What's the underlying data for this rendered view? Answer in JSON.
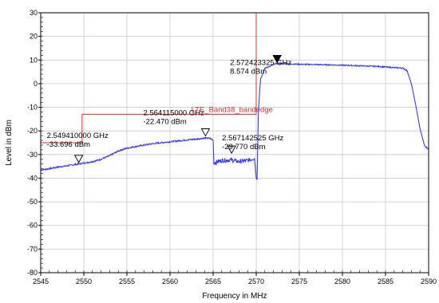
{
  "chart_data": {
    "type": "line",
    "title": "",
    "xlabel": "Frequency in MHz",
    "ylabel": "Level in dBm",
    "xlim": [
      2545,
      2590
    ],
    "ylim": [
      -80,
      30
    ],
    "x_ticks": [
      2545,
      2550,
      2555,
      2560,
      2565,
      2570,
      2575,
      2580,
      2585,
      2590
    ],
    "y_ticks": [
      30,
      20,
      10,
      0,
      -10,
      -20,
      -30,
      -40,
      -50,
      -60,
      -70,
      -80
    ],
    "x_tick_labels": [
      "2545",
      "2550",
      "2555",
      "2560",
      "2565",
      "2570",
      "2575",
      "2580",
      "2585",
      "2590"
    ],
    "y_tick_labels": [
      "30",
      "20",
      "10",
      "0",
      "-10",
      "-20",
      "-30",
      "-40",
      "-50",
      "-60",
      "-70",
      "-80"
    ],
    "grid": true,
    "series": [
      {
        "color": "#3a3aff",
        "points": [
          [
            2545.0,
            -36.5
          ],
          [
            2546.0,
            -36.0
          ],
          [
            2547.0,
            -35.3
          ],
          [
            2548.0,
            -34.8
          ],
          [
            2549.0,
            -34.2
          ],
          [
            2549.9,
            -33.7
          ],
          [
            2551.0,
            -33.0
          ],
          [
            2552.0,
            -32.0
          ],
          [
            2553.0,
            -30.5
          ],
          [
            2554.0,
            -28.5
          ],
          [
            2555.0,
            -27.3
          ],
          [
            2556.0,
            -26.6
          ],
          [
            2557.0,
            -26.0
          ],
          [
            2558.0,
            -25.4
          ],
          [
            2559.0,
            -25.0
          ],
          [
            2560.0,
            -24.6
          ],
          [
            2561.0,
            -24.2
          ],
          [
            2562.0,
            -23.8
          ],
          [
            2563.0,
            -23.5
          ],
          [
            2564.1,
            -23.0
          ],
          [
            2564.7,
            -23.2
          ],
          [
            2565.0,
            -24.0
          ],
          [
            2565.1,
            -33.5
          ],
          [
            2566.0,
            -32.5
          ],
          [
            2567.1,
            -32.3
          ],
          [
            2568.0,
            -33.0
          ],
          [
            2569.0,
            -32.5
          ],
          [
            2569.8,
            -31.5
          ],
          [
            2570.0,
            -40.0
          ],
          [
            2570.1,
            -40.5
          ],
          [
            2570.25,
            -12.0
          ],
          [
            2570.5,
            2.0
          ],
          [
            2571.0,
            6.5
          ],
          [
            2572.0,
            8.0
          ],
          [
            2572.4,
            8.6
          ],
          [
            2575.0,
            8.2
          ],
          [
            2578.0,
            8.0
          ],
          [
            2581.0,
            7.7
          ],
          [
            2584.0,
            7.3
          ],
          [
            2586.0,
            6.8
          ],
          [
            2587.0,
            6.6
          ],
          [
            2587.5,
            5.5
          ],
          [
            2588.0,
            0.0
          ],
          [
            2588.5,
            -9.0
          ],
          [
            2589.0,
            -19.0
          ],
          [
            2589.5,
            -26.0
          ],
          [
            2590.0,
            -28.0
          ]
        ]
      }
    ],
    "limit_line": {
      "name": "LTE_Band38_bandedge",
      "color": "#e03030",
      "points": [
        [
          2545,
          -25
        ],
        [
          2549.8,
          -25
        ],
        [
          2549.8,
          -13
        ],
        [
          2570,
          -13
        ],
        [
          2570,
          30
        ]
      ]
    },
    "markers": [
      {
        "x": 2549.41,
        "y": -33.696,
        "filled": false,
        "freq_label": "2.549410000 GHz",
        "level_label": "-33.696 dBm"
      },
      {
        "x": 2564.115,
        "y": -22.47,
        "filled": false,
        "freq_label": "2.564115000 GHz",
        "level_label": "-22.470 dBm"
      },
      {
        "x": 2567.142525,
        "y": -29.77,
        "filled": false,
        "freq_label": "2.567142525 GHz",
        "level_label": "-29.770 dBm"
      },
      {
        "x": 2572.423325,
        "y": 8.574,
        "filled": true,
        "freq_label": "2.572423325 GHz",
        "level_label": "8.574 dBm"
      }
    ]
  }
}
